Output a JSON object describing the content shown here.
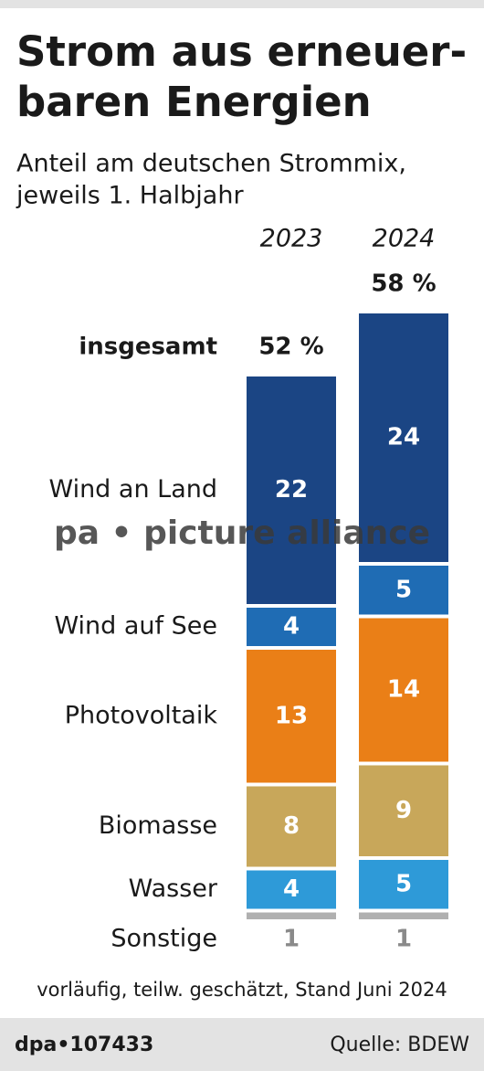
{
  "title_lines": [
    "Strom aus erneuer-",
    "baren Energien"
  ],
  "subtitle_lines": [
    "Anteil am deutschen Strommix,",
    "jeweils 1. Halbjahr"
  ],
  "chart_data": {
    "type": "stacked-bar",
    "categories": [
      "2023",
      "2024"
    ],
    "total": {
      "name": "insgesamt",
      "values": [
        52,
        58
      ],
      "value_labels": [
        "52 %",
        "58 %"
      ]
    },
    "series": [
      {
        "name": "Wind an Land",
        "color": "#1b4584",
        "values": [
          22,
          24
        ]
      },
      {
        "name": "Wind auf See",
        "color": "#1f6cb4",
        "values": [
          4,
          5
        ]
      },
      {
        "name": "Photovoltaik",
        "color": "#ea7f17",
        "values": [
          13,
          14
        ]
      },
      {
        "name": "Biomasse",
        "color": "#c8a75a",
        "values": [
          8,
          9
        ]
      },
      {
        "name": "Wasser",
        "color": "#2e9ad8",
        "values": [
          4,
          5
        ]
      },
      {
        "name": "Sonstige",
        "color": "#b0b0b0",
        "values": [
          1,
          1
        ]
      }
    ]
  },
  "watermark": "pa • picture alliance",
  "note": "vorläufig, teilw. geschätzt, Stand Juni 2024",
  "footer": {
    "id": "dpa•107433",
    "source": "Quelle: BDEW"
  }
}
